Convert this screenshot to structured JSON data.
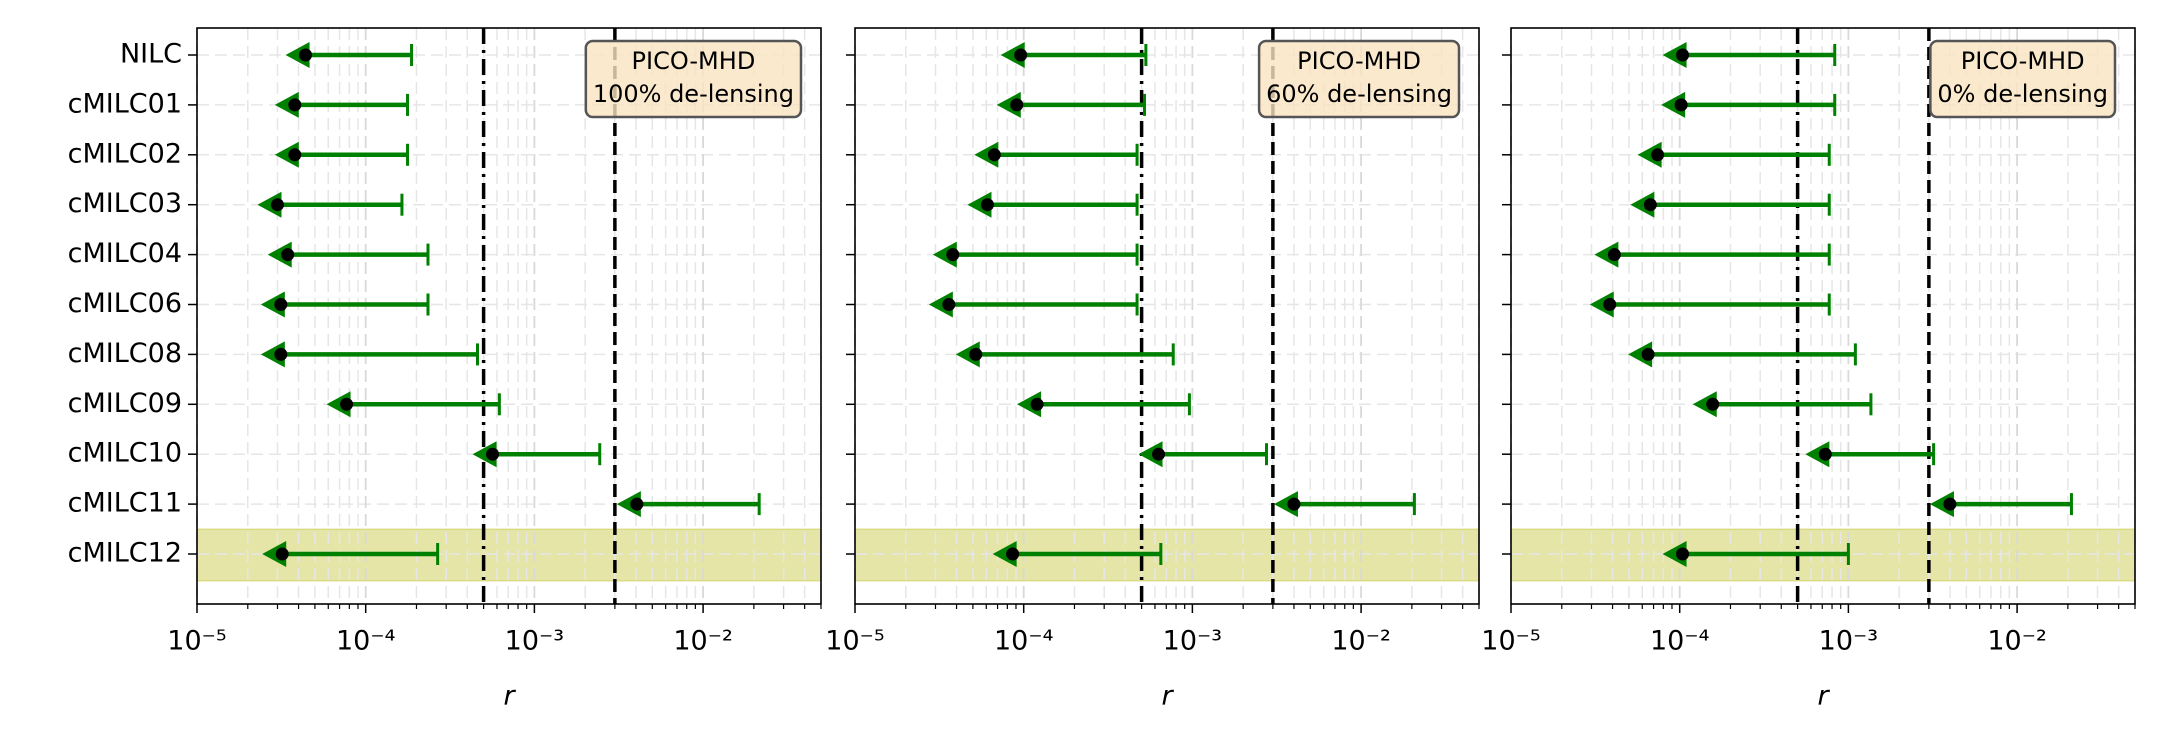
{
  "chart_data": [
    {
      "type": "upper-limit",
      "categories": [
        "NILC",
        "cMILC01",
        "cMILC02",
        "cMILC03",
        "cMILC04",
        "cMILC06",
        "cMILC08",
        "cMILC09",
        "cMILC10",
        "cMILC11",
        "cMILC12"
      ],
      "values": [
        4.4e-05,
        3.8e-05,
        3.8e-05,
        3e-05,
        3.45e-05,
        3.14e-05,
        3.14e-05,
        7.7e-05,
        0.000565,
        0.00405,
        3.2e-05
      ],
      "upper_limits": [
        0.000187,
        0.000177,
        0.000177,
        0.000164,
        0.000234,
        0.000234,
        0.00046,
        0.00062,
        0.00244,
        0.0215,
        0.000267
      ],
      "color": "#008000",
      "annotation": [
        "PICO-MHD",
        "100% de-lensing"
      ],
      "xlabel": "r",
      "xscale": "log",
      "xlim": [
        1e-05,
        0.05
      ],
      "xticks": [
        {
          "value": 1e-05,
          "label": "10⁻⁵"
        },
        {
          "value": 0.0001,
          "label": "10⁻⁴"
        },
        {
          "value": 0.001,
          "label": "10⁻³"
        },
        {
          "value": 0.01,
          "label": "10⁻²"
        }
      ],
      "vlines": [
        {
          "value": 0.0005,
          "style": "dashdot"
        },
        {
          "value": 0.003,
          "style": "dashed"
        }
      ],
      "highlight_index": 10,
      "highlight_color": "#bcbd22",
      "grid": true
    },
    {
      "type": "upper-limit",
      "values": [
        9.6e-05,
        9.1e-05,
        6.7e-05,
        6.1e-05,
        3.8e-05,
        3.6e-05,
        5.2e-05,
        0.00012,
        0.00063,
        0.004,
        8.6e-05
      ],
      "upper_limits": [
        0.00053,
        0.00052,
        0.00047,
        0.00047,
        0.00047,
        0.00047,
        0.00077,
        0.00096,
        0.00275,
        0.0207,
        0.00065
      ],
      "color": "#008000",
      "annotation": [
        "PICO-MHD",
        "60% de-lensing"
      ],
      "xlabel": "r",
      "xscale": "log",
      "xlim": [
        1e-05,
        0.05
      ],
      "xticks": [
        {
          "value": 1e-05,
          "label": "10⁻⁵"
        },
        {
          "value": 0.0001,
          "label": "10⁻⁴"
        },
        {
          "value": 0.001,
          "label": "10⁻³"
        },
        {
          "value": 0.01,
          "label": "10⁻²"
        }
      ],
      "vlines": [
        {
          "value": 0.0005,
          "style": "dashdot"
        },
        {
          "value": 0.003,
          "style": "dashed"
        }
      ],
      "highlight_index": 10,
      "highlight_color": "#bcbd22",
      "grid": true
    },
    {
      "type": "upper-limit",
      "values": [
        0.000104,
        0.000102,
        7.4e-05,
        6.7e-05,
        4.1e-05,
        3.85e-05,
        6.5e-05,
        0.000157,
        0.00073,
        0.004,
        0.000104
      ],
      "upper_limits": [
        0.00083,
        0.00083,
        0.00077,
        0.00077,
        0.00077,
        0.00077,
        0.0011,
        0.00136,
        0.0032,
        0.021,
        0.001
      ],
      "color": "#008000",
      "annotation": [
        "PICO-MHD",
        "0% de-lensing"
      ],
      "xlabel": "r",
      "xscale": "log",
      "xlim": [
        1e-05,
        0.05
      ],
      "xticks": [
        {
          "value": 1e-05,
          "label": "10⁻⁵"
        },
        {
          "value": 0.0001,
          "label": "10⁻⁴"
        },
        {
          "value": 0.001,
          "label": "10⁻³"
        },
        {
          "value": 0.01,
          "label": "10⁻²"
        }
      ],
      "vlines": [
        {
          "value": 0.0005,
          "style": "dashdot"
        },
        {
          "value": 0.003,
          "style": "dashed"
        }
      ],
      "highlight_index": 10,
      "highlight_color": "#bcbd22",
      "grid": true
    }
  ]
}
